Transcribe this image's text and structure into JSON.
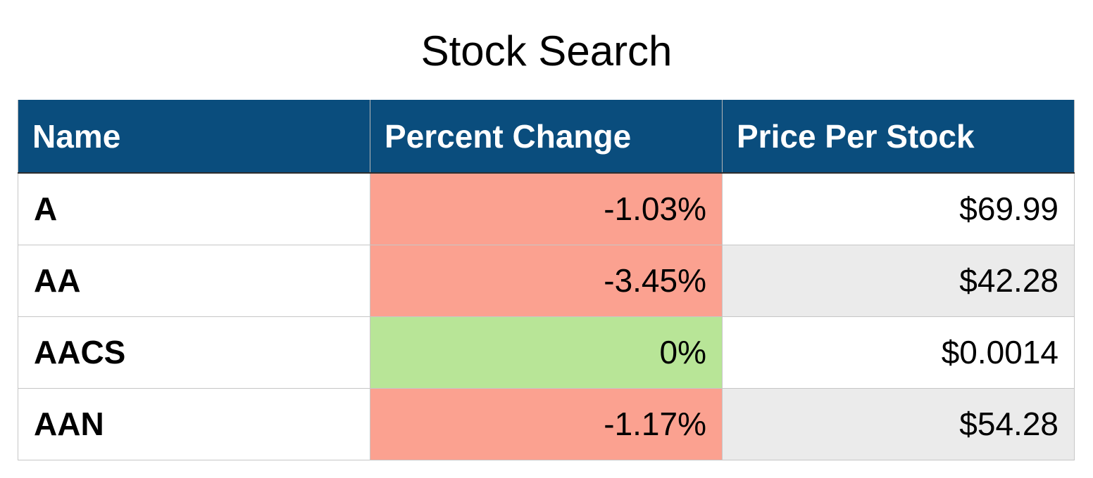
{
  "page": {
    "title": "Stock Search"
  },
  "table": {
    "headers": [
      "Name",
      "Percent Change",
      "Price Per Stock"
    ],
    "rows": [
      {
        "name": "A",
        "percent_change": "-1.03%",
        "price": "$69.99",
        "status": "negative"
      },
      {
        "name": "AA",
        "percent_change": "-3.45%",
        "price": "$42.28",
        "status": "negative"
      },
      {
        "name": "AACS",
        "percent_change": "0%",
        "price": "$0.0014",
        "status": "zero"
      },
      {
        "name": "AAN",
        "percent_change": "-1.17%",
        "price": "$54.28",
        "status": "negative"
      }
    ]
  },
  "colors": {
    "header_bg": "#0a4d7d",
    "name_text": "#0a4d7d",
    "negative_bg": "#fba190",
    "zero_bg": "#b8e597",
    "alt_row_bg": "#ebebeb"
  }
}
